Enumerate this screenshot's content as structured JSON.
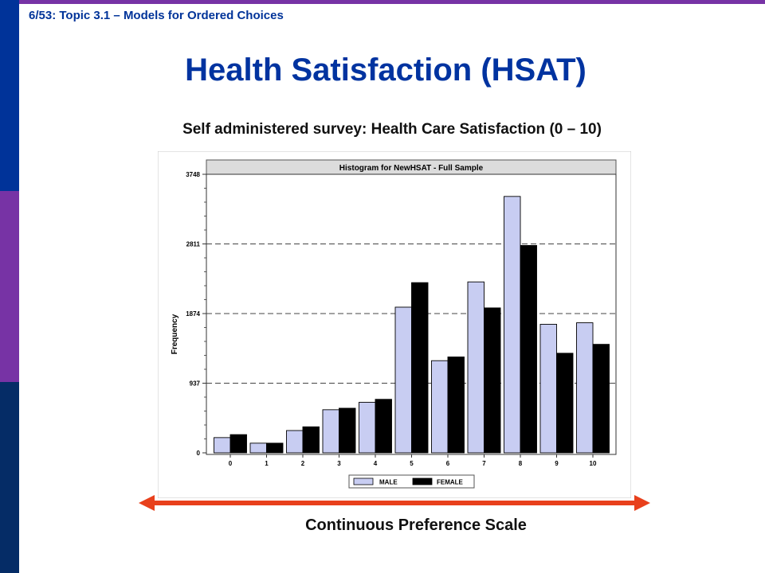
{
  "slide": {
    "header": "6/53: Topic 3.1 – Models for Ordered Choices",
    "title": "Health Satisfaction (HSAT)",
    "subtitle": "Self administered survey: Health Care Satisfaction  (0 – 10)",
    "scale_label": "Continuous Preference Scale"
  },
  "colors": {
    "accent_blue": "#0033a0",
    "accent_purple": "#7733a5",
    "male_fill": "#c8cdf2",
    "female_fill": "#000000",
    "arrow": "#e8401c"
  },
  "chart_data": {
    "type": "bar",
    "title": "Histogram for NewHSAT - Full Sample",
    "ylabel": "Frequency",
    "xlabel": "",
    "categories": [
      "0",
      "1",
      "2",
      "3",
      "4",
      "5",
      "6",
      "7",
      "8",
      "9",
      "10"
    ],
    "yticks": [
      "0",
      "937",
      "1874",
      "2811",
      "3748"
    ],
    "ylim": [
      0,
      3748
    ],
    "grid": true,
    "legend_position": "bottom-center",
    "series": [
      {
        "name": "MALE",
        "values": [
          205,
          130,
          300,
          580,
          680,
          1960,
          1240,
          2300,
          3450,
          1730,
          1750
        ]
      },
      {
        "name": "FEMALE",
        "values": [
          245,
          130,
          350,
          600,
          720,
          2290,
          1290,
          1950,
          2790,
          1340,
          1460
        ]
      }
    ]
  }
}
